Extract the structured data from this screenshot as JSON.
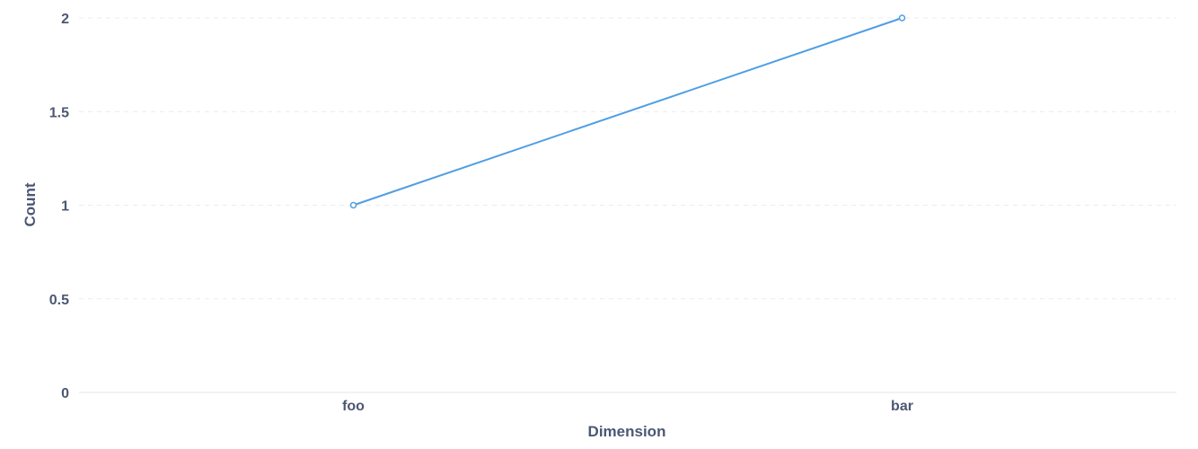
{
  "chart_data": {
    "type": "line",
    "categories": [
      "foo",
      "bar"
    ],
    "series": [
      {
        "values": [
          1,
          2
        ],
        "color": "#509ee3"
      }
    ],
    "xlabel": "Dimension",
    "ylabel": "Count",
    "ylim": [
      0,
      2
    ],
    "yticks": [
      "0",
      "0.5",
      "1",
      "1.5",
      "2"
    ],
    "grid": true,
    "legend": "none",
    "colors": {
      "text": "#4c5773",
      "gridline": "#ececec",
      "axis": "#e6e6e6"
    }
  }
}
